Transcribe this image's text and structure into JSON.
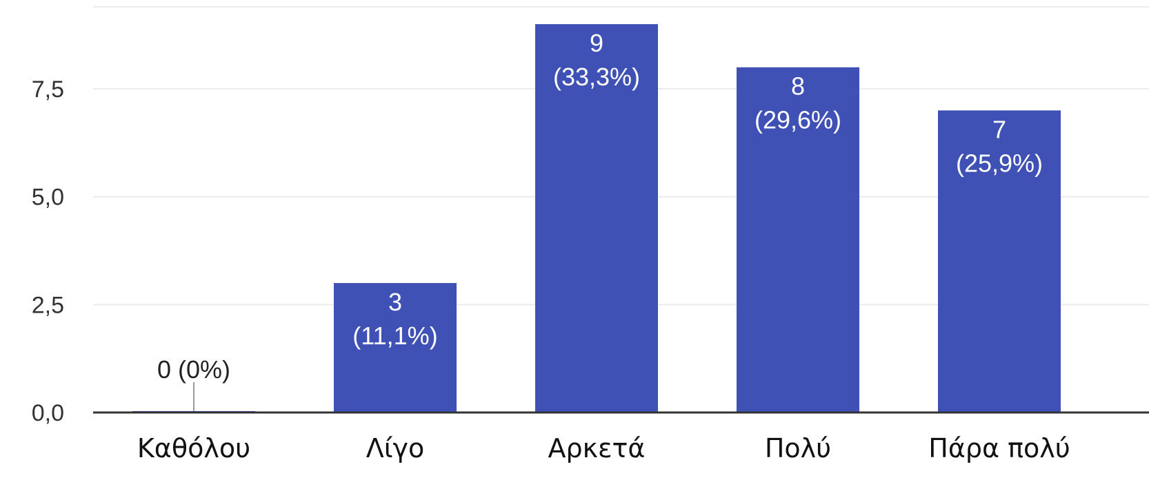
{
  "chart_data": {
    "type": "bar",
    "categories": [
      "Καθόλου",
      "Λίγο",
      "Αρκετά",
      "Πολύ",
      "Πάρα πολύ"
    ],
    "values": [
      0,
      3,
      9,
      8,
      7
    ],
    "data_labels": [
      [
        "0 (0%)"
      ],
      [
        "3",
        "(11,1%)"
      ],
      [
        "9",
        "(33,3%)"
      ],
      [
        "8",
        "(29,6%)"
      ],
      [
        "7",
        "(25,9%)"
      ]
    ],
    "yticks": [
      0,
      2.5,
      5,
      7.5
    ],
    "ytick_labels": [
      "0,0",
      "2,5",
      "5,0",
      "7,5"
    ],
    "ylim": [
      0,
      9.4
    ],
    "grid": true,
    "legend": "none",
    "bar_color": "#3f51b5"
  }
}
